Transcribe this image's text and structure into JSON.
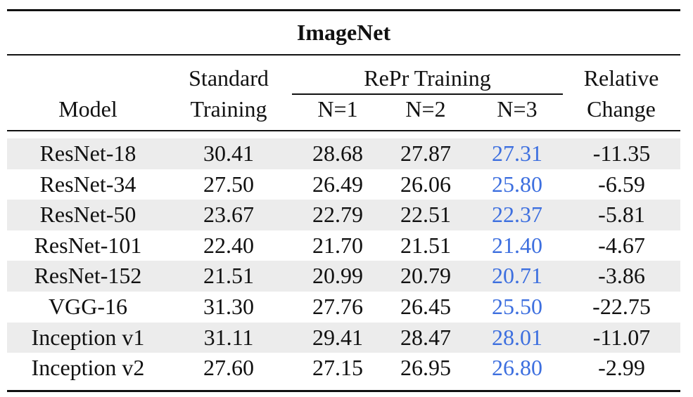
{
  "table": {
    "title": "ImageNet",
    "header": {
      "model": "Model",
      "standard": "Standard Training",
      "repr": "RePr Training",
      "n": [
        "N=1",
        "N=2",
        "N=3"
      ],
      "relative": "Relative Change"
    },
    "rows": [
      [
        "ResNet-18",
        "30.41",
        "28.68",
        "27.87",
        "27.31",
        "-11.35"
      ],
      [
        "ResNet-34",
        "27.50",
        "26.49",
        "26.06",
        "25.80",
        "-6.59"
      ],
      [
        "ResNet-50",
        "23.67",
        "22.79",
        "22.51",
        "22.37",
        "-5.81"
      ],
      [
        "ResNet-101",
        "22.40",
        "21.70",
        "21.51",
        "21.40",
        "-4.67"
      ],
      [
        "ResNet-152",
        "21.51",
        "20.99",
        "20.79",
        "20.71",
        "-3.86"
      ],
      [
        "VGG-16",
        "31.30",
        "27.76",
        "26.45",
        "25.50",
        "-22.75"
      ],
      [
        "Inception v1",
        "31.11",
        "29.41",
        "28.47",
        "28.01",
        "-11.07"
      ],
      [
        "Inception v2",
        "27.60",
        "27.15",
        "26.95",
        "26.80",
        "-2.99"
      ]
    ]
  }
}
